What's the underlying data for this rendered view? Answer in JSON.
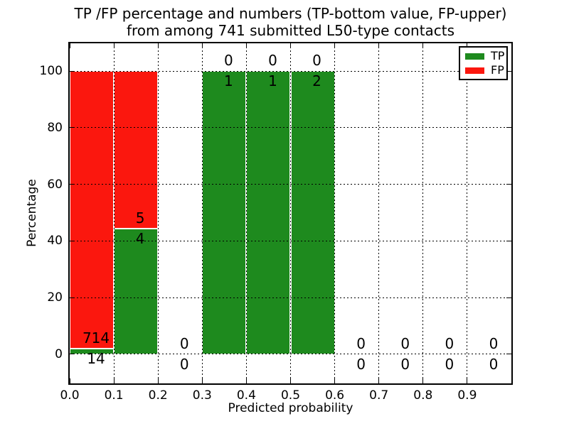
{
  "title": {
    "line1": "TP /FP percentage and numbers (TP-bottom value, FP-upper)",
    "line2": "from among 741 submitted L50-type contacts"
  },
  "legend": {
    "position": "upper right",
    "items": [
      {
        "label": "TP",
        "color_key": "tp"
      },
      {
        "label": "FP",
        "color_key": "fp"
      }
    ]
  },
  "colors": {
    "tp": "#1e8a1e",
    "fp": "#fb170e",
    "grid": "#000000",
    "bar_edge": "#ffffff",
    "text": "#000000",
    "background": "#ffffff"
  },
  "chart_data": {
    "type": "bar",
    "stacked": true,
    "title": "TP /FP percentage and numbers (TP-bottom value, FP-upper)\nfrom among 741 submitted L50-type contacts",
    "xlabel": "Predicted probability",
    "ylabel": "Percentage",
    "total_contacts": 741,
    "xlim": [
      0,
      1
    ],
    "ylim": [
      -10.3,
      109.8
    ],
    "xtick_labels": [
      "0.0",
      "0.1",
      "0.2",
      "0.3",
      "0.4",
      "0.5",
      "0.6",
      "0.7",
      "0.8",
      "0.9"
    ],
    "xtick_values": [
      0,
      0.1,
      0.2,
      0.3,
      0.4,
      0.5,
      0.6,
      0.7,
      0.8,
      0.9
    ],
    "yticks": [
      0,
      20,
      40,
      60,
      80,
      100
    ],
    "grid": "dotted",
    "legend_position": "upper right",
    "series": [
      {
        "name": "TP",
        "color_key": "tp"
      },
      {
        "name": "FP",
        "color_key": "fp"
      }
    ],
    "bins": [
      {
        "x0": 0.0,
        "x1": 0.1,
        "tp_count": 14,
        "fp_count": 714,
        "tp_pct": 1.9,
        "fp_pct": 98.1
      },
      {
        "x0": 0.1,
        "x1": 0.2,
        "tp_count": 4,
        "fp_count": 5,
        "tp_pct": 44.4,
        "fp_pct": 55.6
      },
      {
        "x0": 0.2,
        "x1": 0.3,
        "tp_count": 0,
        "fp_count": 0,
        "tp_pct": 0,
        "fp_pct": 0
      },
      {
        "x0": 0.3,
        "x1": 0.4,
        "tp_count": 1,
        "fp_count": 0,
        "tp_pct": 100,
        "fp_pct": 0
      },
      {
        "x0": 0.4,
        "x1": 0.5,
        "tp_count": 1,
        "fp_count": 0,
        "tp_pct": 100,
        "fp_pct": 0
      },
      {
        "x0": 0.5,
        "x1": 0.6,
        "tp_count": 2,
        "fp_count": 0,
        "tp_pct": 100,
        "fp_pct": 0
      },
      {
        "x0": 0.6,
        "x1": 0.7,
        "tp_count": 0,
        "fp_count": 0,
        "tp_pct": 0,
        "fp_pct": 0
      },
      {
        "x0": 0.7,
        "x1": 0.8,
        "tp_count": 0,
        "fp_count": 0,
        "tp_pct": 0,
        "fp_pct": 0
      },
      {
        "x0": 0.8,
        "x1": 0.9,
        "tp_count": 0,
        "fp_count": 0,
        "tp_pct": 0,
        "fp_pct": 0
      },
      {
        "x0": 0.9,
        "x1": 1.0,
        "tp_count": 0,
        "fp_count": 0,
        "tp_pct": 0,
        "fp_pct": 0
      }
    ]
  }
}
